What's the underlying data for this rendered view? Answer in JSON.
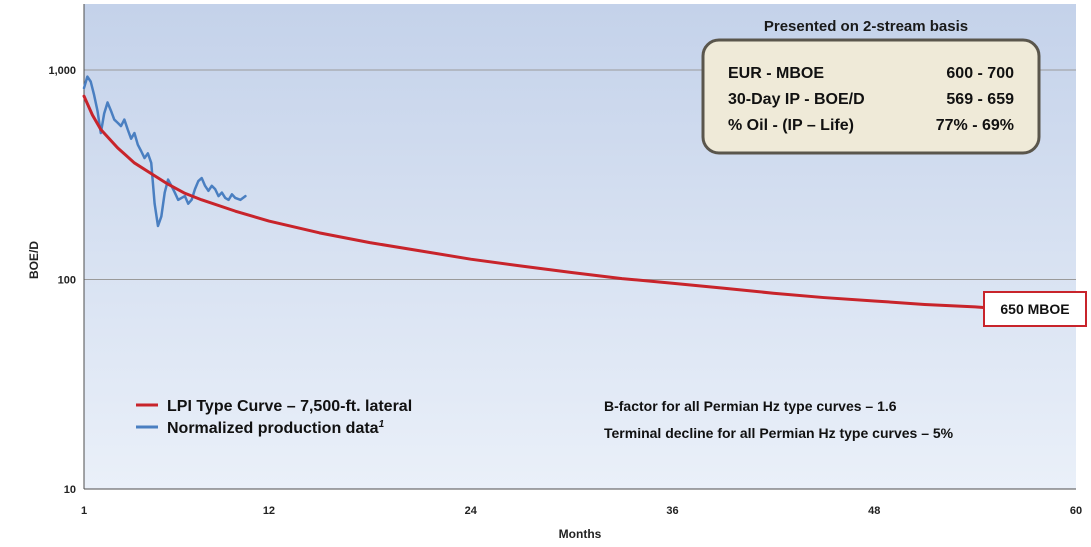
{
  "chart_data": {
    "type": "line",
    "xlabel": "Months",
    "ylabel": "BOE/D",
    "xlim": [
      1,
      60
    ],
    "ylim": [
      10,
      2000
    ],
    "yscale": "log",
    "x_ticks": [
      "1",
      "12",
      "24",
      "36",
      "48",
      "60"
    ],
    "y_ticks": [
      "10",
      "100",
      "1,000"
    ],
    "grid": "horizontal",
    "legend_position": "bottom-left",
    "series": [
      {
        "name": "LPI Type Curve – 7,500-ft. lateral",
        "color": "#c8242b",
        "x": [
          1,
          1.5,
          2,
          3,
          4,
          5,
          6,
          7,
          8,
          10,
          12,
          15,
          18,
          21,
          24,
          27,
          30,
          33,
          36,
          39,
          42,
          45,
          48,
          51,
          54,
          55
        ],
        "y": [
          750,
          610,
          520,
          425,
          360,
          320,
          285,
          258,
          240,
          212,
          190,
          167,
          150,
          137,
          125,
          116,
          108,
          101,
          96,
          91,
          86,
          82,
          79,
          76,
          74,
          73
        ]
      },
      {
        "name": "Normalized production data",
        "name_superscript": "1",
        "color": "#4a7fc1",
        "x": [
          1,
          1.2,
          1.4,
          1.6,
          1.8,
          2.0,
          2.2,
          2.4,
          2.6,
          2.8,
          3.0,
          3.2,
          3.4,
          3.6,
          3.8,
          4.0,
          4.2,
          4.4,
          4.6,
          4.8,
          5.0,
          5.2,
          5.4,
          5.6,
          5.8,
          6.0,
          6.2,
          6.4,
          6.6,
          6.8,
          7.0,
          7.2,
          7.4,
          7.6,
          7.8,
          8.0,
          8.2,
          8.4,
          8.6,
          8.8,
          9.0,
          9.2,
          9.4,
          9.6,
          9.8,
          10.0,
          10.3,
          10.6
        ],
        "y": [
          820,
          930,
          880,
          760,
          640,
          500,
          620,
          700,
          640,
          580,
          560,
          540,
          580,
          520,
          470,
          500,
          440,
          410,
          380,
          400,
          360,
          230,
          180,
          200,
          260,
          300,
          280,
          260,
          240,
          245,
          250,
          230,
          240,
          270,
          295,
          305,
          280,
          265,
          280,
          270,
          250,
          260,
          245,
          240,
          255,
          245,
          240,
          250
        ]
      }
    ],
    "annotations": {
      "header": "Presented on 2-stream basis",
      "box_rows": [
        {
          "label": "EUR - MBOE",
          "value": "600 - 700"
        },
        {
          "label": "30-Day IP - BOE/D",
          "value": "569 - 659"
        },
        {
          "label": "% Oil - (IP – Life)",
          "value": "77% - 69%"
        }
      ],
      "callout": "650 MBOE",
      "notes": [
        "B-factor for all Permian Hz type curves – 1.6",
        "Terminal decline for all Permian Hz type curves – 5%"
      ]
    },
    "colors": {
      "plot_top": "#c4d2ea",
      "plot_bottom": "#eaf0f9",
      "box_fill": "#efead8",
      "box_border": "#5a564c",
      "callout_border": "#c8242b"
    }
  }
}
